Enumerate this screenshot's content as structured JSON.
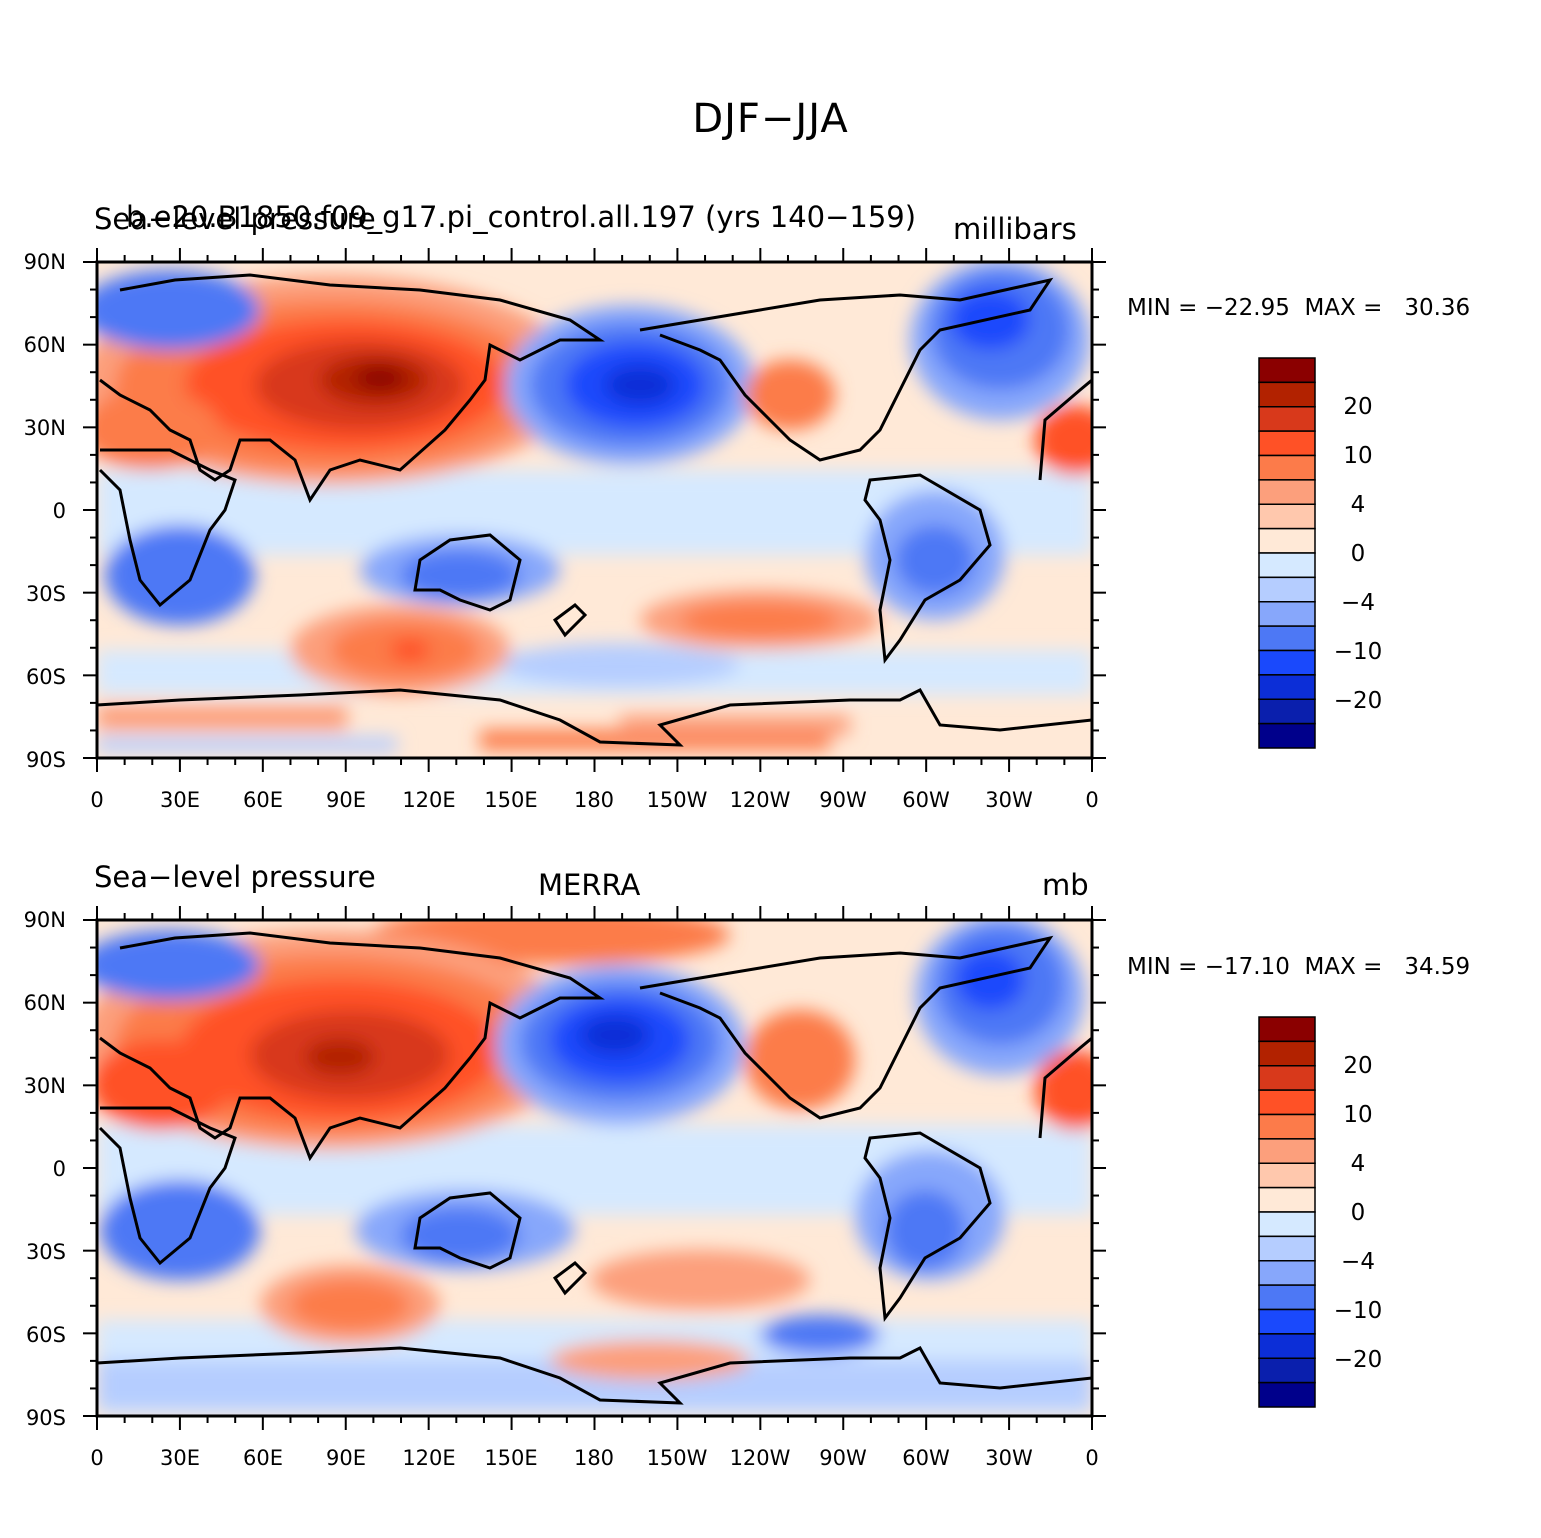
{
  "title": "DJF−JJA",
  "panels": [
    {
      "left_label": "Sea−level pressure",
      "center_label": "b.e20.B1850.f09_g17.pi_control.all.197 (yrs 140−159)",
      "right_label": "millibars",
      "min_max": "MIN = −22.95  MAX =   30.36"
    },
    {
      "left_label": "Sea−level pressure",
      "center_label": "MERRA",
      "right_label": "mb",
      "min_max": "MIN = −17.10  MAX =   34.59"
    }
  ],
  "lat_ticks": [
    "90N",
    "60N",
    "30N",
    "0",
    "30S",
    "60S",
    "90S"
  ],
  "lon_ticks": [
    "0",
    "30E",
    "60E",
    "90E",
    "120E",
    "150E",
    "180",
    "150W",
    "120W",
    "90W",
    "60W",
    "30W",
    "0"
  ],
  "colorbar": {
    "labels": [
      "20",
      "10",
      "4",
      "0",
      "−4",
      "−10",
      "−20"
    ],
    "colors": [
      "#8b0000",
      "#b22200",
      "#d8391b",
      "#ff5126",
      "#fc7b4a",
      "#fc9f7c",
      "#ffc8ad",
      "#ffe9d7",
      "#d5e9ff",
      "#b5cdff",
      "#87a7fb",
      "#4d78f5",
      "#1a49fc",
      "#0c2ed7",
      "#0a1fad",
      "#00008b"
    ]
  },
  "chart_data": {
    "type": "heatmap",
    "variable": "Sea−level pressure",
    "season_difference": "DJF−JJA",
    "color_scale_levels": [
      "20",
      "10",
      "4",
      "0",
      "−4",
      "−10",
      "−20"
    ],
    "maps": [
      {
        "label": "b.e20.B1850.f09_g17.pi_control.all.197 (yrs 140−159)",
        "units": "millibars",
        "min": -22.95,
        "max": 30.36
      },
      {
        "label": "MERRA",
        "units": "mb",
        "min": -17.1,
        "max": 34.59
      }
    ]
  }
}
